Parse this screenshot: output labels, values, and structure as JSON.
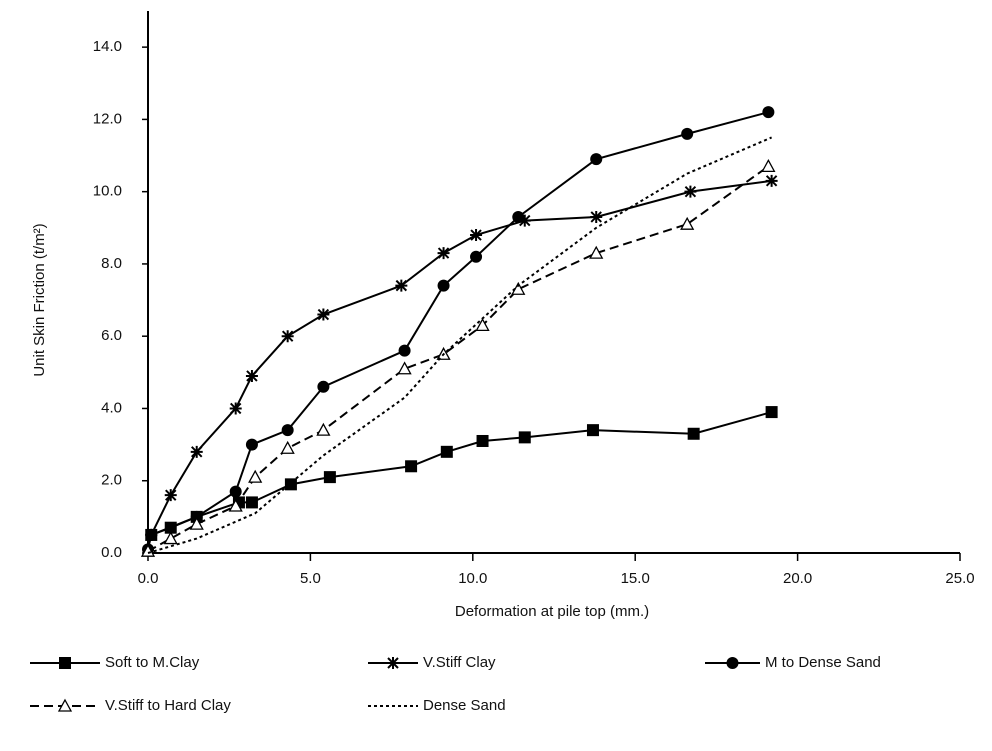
{
  "chart_data": {
    "type": "line",
    "x_label": "Deformation at pile top (mm.)",
    "y_label": "Unit Skin Friction (t/m²)",
    "xlim": [
      0,
      25
    ],
    "ylim": [
      0,
      15
    ],
    "xticks": [
      {
        "value": 0,
        "label": "0.0"
      },
      {
        "value": 5,
        "label": "5.0"
      },
      {
        "value": 10,
        "label": "10.0"
      },
      {
        "value": 15,
        "label": "15.0"
      },
      {
        "value": 20,
        "label": "20.0"
      },
      {
        "value": 25,
        "label": "25.0"
      }
    ],
    "yticks": [
      {
        "value": 0,
        "label": "0.0"
      },
      {
        "value": 2,
        "label": "2.0"
      },
      {
        "value": 4,
        "label": "4.0"
      },
      {
        "value": 6,
        "label": "6.0"
      },
      {
        "value": 8,
        "label": "8.0"
      },
      {
        "value": 10,
        "label": "10.0"
      },
      {
        "value": 12,
        "label": "12.0"
      },
      {
        "value": 14,
        "label": "14.0"
      }
    ],
    "grid": false,
    "series": [
      {
        "name": "Soft to M.Clay",
        "color": "#000000",
        "marker": "square",
        "line_style": "solid",
        "x": [
          0.1,
          0.7,
          1.5,
          2.8,
          3.2,
          4.4,
          5.6,
          8.1,
          9.2,
          10.3,
          11.6,
          13.7,
          16.8,
          19.2
        ],
        "values": [
          0.5,
          0.7,
          1.0,
          1.4,
          1.4,
          1.9,
          2.1,
          2.4,
          2.8,
          3.1,
          3.2,
          3.4,
          3.3,
          3.9
        ]
      },
      {
        "name": "V.Stiff Clay",
        "color": "#000000",
        "marker": "star",
        "line_style": "solid",
        "x": [
          0.1,
          0.7,
          1.5,
          2.7,
          3.2,
          4.3,
          5.4,
          7.8,
          9.1,
          10.1,
          11.6,
          13.8,
          16.7,
          19.2
        ],
        "values": [
          0.5,
          1.6,
          2.8,
          4.0,
          4.9,
          6.0,
          6.6,
          7.4,
          8.3,
          8.8,
          9.2,
          9.3,
          10.0,
          10.3
        ]
      },
      {
        "name": "M to Dense Sand",
        "color": "#000000",
        "marker": "circle",
        "line_style": "solid",
        "x": [
          0,
          0.1,
          1.5,
          2.7,
          3.2,
          4.3,
          5.4,
          7.9,
          9.1,
          10.1,
          11.4,
          13.8,
          16.6,
          19.1
        ],
        "values": [
          0.1,
          0.5,
          1.0,
          1.7,
          3.0,
          3.4,
          4.6,
          5.6,
          7.4,
          8.2,
          9.3,
          10.9,
          11.6,
          12.2
        ]
      },
      {
        "name": "V.Stiff to Hard Clay",
        "color": "#000000",
        "marker": "triangle",
        "line_style": "dashed",
        "x": [
          0,
          0.7,
          1.5,
          2.7,
          3.3,
          4.3,
          5.4,
          7.9,
          9.1,
          10.3,
          11.4,
          13.8,
          16.6,
          19.1
        ],
        "values": [
          0.05,
          0.4,
          0.8,
          1.3,
          2.1,
          2.9,
          3.4,
          5.1,
          5.5,
          6.3,
          7.3,
          8.3,
          9.1,
          10.7
        ]
      },
      {
        "name": "Dense Sand",
        "color": "#000000",
        "marker": "none",
        "line_style": "dotted",
        "x": [
          0,
          1.5,
          3.3,
          5.4,
          7.9,
          9.1,
          11.4,
          13.8,
          16.6,
          19.2
        ],
        "values": [
          0,
          0.4,
          1.1,
          2.7,
          4.3,
          5.5,
          7.4,
          9.0,
          10.5,
          11.5
        ]
      }
    ]
  }
}
